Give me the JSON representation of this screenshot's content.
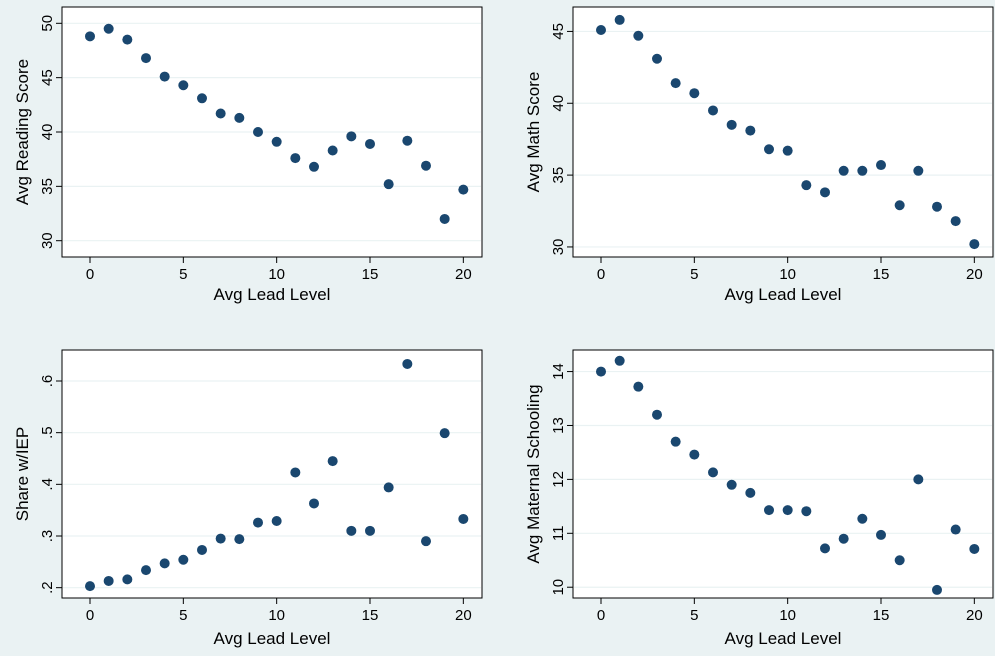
{
  "chart_data": [
    {
      "type": "scatter",
      "xlabel": "Avg Lead Level",
      "ylabel": "Avg Reading Score",
      "xlim": [
        -1.5,
        21
      ],
      "ylim": [
        28.5,
        51.5
      ],
      "xticks": [
        0,
        5,
        10,
        15,
        20
      ],
      "yticks": [
        30,
        35,
        40,
        45,
        50
      ],
      "ytick_labels": [
        "30",
        "35",
        "40",
        "45",
        "50"
      ],
      "grid": "horizontal",
      "x": [
        0,
        1,
        2,
        3,
        4,
        5,
        6,
        7,
        8,
        9,
        10,
        11,
        12,
        13,
        14,
        15,
        16,
        17,
        18,
        19,
        20
      ],
      "y": [
        48.8,
        49.5,
        48.5,
        46.8,
        45.1,
        44.3,
        43.1,
        41.7,
        41.3,
        40.0,
        39.1,
        37.6,
        36.8,
        38.3,
        39.6,
        38.9,
        35.2,
        39.2,
        36.9,
        32.0,
        34.7
      ]
    },
    {
      "type": "scatter",
      "xlabel": "Avg Lead Level",
      "ylabel": "Avg Math Score",
      "xlim": [
        -1.5,
        21
      ],
      "ylim": [
        29.3,
        46.7
      ],
      "xticks": [
        0,
        5,
        10,
        15,
        20
      ],
      "yticks": [
        30,
        35,
        40,
        45
      ],
      "ytick_labels": [
        "30",
        "35",
        "40",
        "45"
      ],
      "grid": "horizontal",
      "x": [
        0,
        1,
        2,
        3,
        4,
        5,
        6,
        7,
        8,
        9,
        10,
        11,
        12,
        13,
        14,
        15,
        16,
        17,
        18,
        19,
        20
      ],
      "y": [
        45.1,
        45.8,
        44.7,
        43.1,
        41.4,
        40.7,
        39.5,
        38.5,
        38.1,
        36.8,
        36.7,
        34.3,
        33.8,
        35.3,
        35.3,
        35.7,
        32.9,
        35.3,
        32.8,
        31.8,
        30.2
      ]
    },
    {
      "type": "scatter",
      "xlabel": "Avg Lead Level",
      "ylabel": "Share w/IEP",
      "xlim": [
        -1.5,
        21
      ],
      "ylim": [
        0.18,
        0.66
      ],
      "xticks": [
        0,
        5,
        10,
        15,
        20
      ],
      "yticks": [
        0.2,
        0.3,
        0.4,
        0.5,
        0.6
      ],
      "ytick_labels": [
        ".2",
        ".3",
        ".4",
        ".5",
        ".6"
      ],
      "grid": "horizontal",
      "x": [
        0,
        1,
        2,
        3,
        4,
        5,
        6,
        7,
        8,
        9,
        10,
        11,
        12,
        13,
        14,
        15,
        16,
        17,
        18,
        19,
        20
      ],
      "y": [
        0.203,
        0.213,
        0.216,
        0.234,
        0.247,
        0.254,
        0.273,
        0.295,
        0.294,
        0.326,
        0.329,
        0.423,
        0.363,
        0.445,
        0.31,
        0.31,
        0.394,
        0.633,
        0.29,
        0.499,
        0.333
      ]
    },
    {
      "type": "scatter",
      "xlabel": "Avg Lead Level",
      "ylabel": "Avg Maternal Schooling",
      "xlim": [
        -1.5,
        21
      ],
      "ylim": [
        9.8,
        14.4
      ],
      "xticks": [
        0,
        5,
        10,
        15,
        20
      ],
      "yticks": [
        10,
        11,
        12,
        13,
        14
      ],
      "ytick_labels": [
        "10",
        "11",
        "12",
        "13",
        "14"
      ],
      "grid": "horizontal",
      "x": [
        0,
        1,
        2,
        3,
        4,
        5,
        6,
        7,
        8,
        9,
        10,
        11,
        12,
        13,
        14,
        15,
        16,
        17,
        18,
        19,
        20
      ],
      "y": [
        14.0,
        14.2,
        13.72,
        13.2,
        12.7,
        12.46,
        12.13,
        11.9,
        11.75,
        11.43,
        11.43,
        11.41,
        10.72,
        10.9,
        11.27,
        10.97,
        10.5,
        12.0,
        9.95,
        11.07,
        10.71
      ]
    }
  ],
  "colors": {
    "background": "#eaf2f3",
    "plot_area": "#ffffff",
    "marker": "#1a476f",
    "grid": "#eaf2f3"
  }
}
